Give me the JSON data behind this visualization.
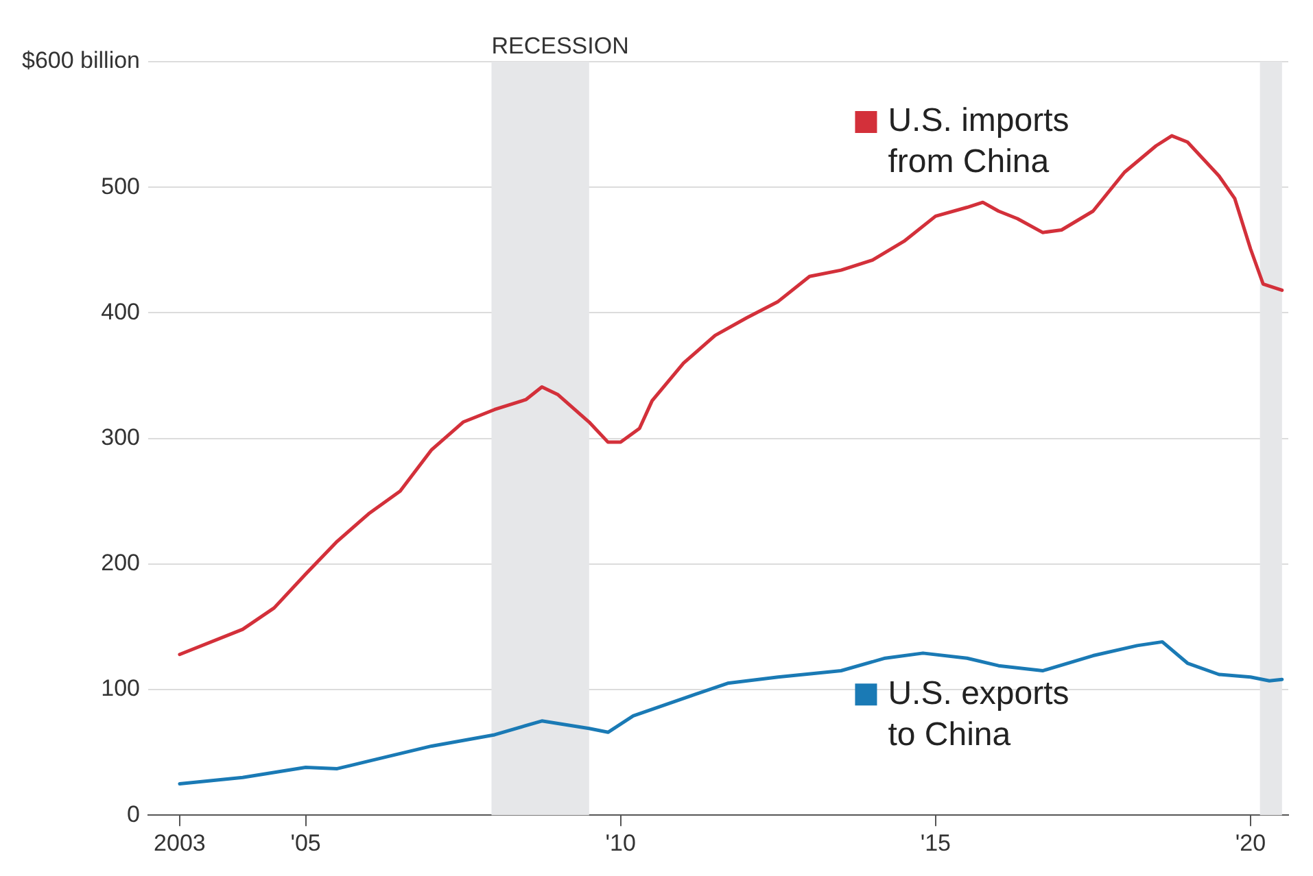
{
  "chart_data": {
    "type": "line",
    "xlim": [
      2002.5,
      2020.6
    ],
    "xticks": [
      {
        "value": 2003,
        "label": "2003"
      },
      {
        "value": 2005,
        "label": "'05"
      },
      {
        "value": 2010,
        "label": "'10"
      },
      {
        "value": 2015,
        "label": "'15"
      },
      {
        "value": 2020,
        "label": "'20"
      }
    ],
    "ylim": [
      0,
      600
    ],
    "yticks": [
      0,
      100,
      200,
      300,
      400,
      500,
      {
        "value": 600,
        "label": "$600 billion"
      }
    ],
    "grid": "y",
    "legend": "right",
    "line_style": "solid",
    "marker": "none",
    "bands": [
      {
        "axis": "x",
        "from": 2007.95,
        "to": 2009.5,
        "label": "RECESSION",
        "color": "#e6e7e9"
      },
      {
        "axis": "x",
        "from": 2020.15,
        "to": 2020.5,
        "color": "#e6e7e9"
      }
    ],
    "series": [
      {
        "name": "U.S. imports from China",
        "color": "#d3303a",
        "x": [
          2003,
          2004,
          2004.5,
          2005,
          2005.5,
          2006,
          2006.5,
          2007,
          2007.5,
          2008,
          2008.5,
          2008.75,
          2009,
          2009.5,
          2009.8,
          2010,
          2010.3,
          2010.5,
          2011,
          2011.5,
          2012,
          2012.5,
          2013,
          2013.5,
          2014,
          2014.5,
          2015,
          2015.5,
          2015.75,
          2016,
          2016.3,
          2016.7,
          2017,
          2017.5,
          2018,
          2018.5,
          2018.75,
          2019,
          2019.5,
          2019.75,
          2020,
          2020.2,
          2020.5
        ],
        "values": [
          128,
          148,
          165,
          192,
          218,
          240,
          258,
          291,
          313,
          323,
          331,
          341,
          335,
          313,
          297,
          297,
          308,
          330,
          360,
          382,
          396,
          409,
          429,
          434,
          442,
          457,
          477,
          484,
          488,
          481,
          475,
          464,
          466,
          481,
          512,
          533,
          541,
          536,
          509,
          491,
          451,
          423,
          418
        ]
      },
      {
        "name": "U.S. exports to China",
        "color": "#1a7ab5",
        "x": [
          2003,
          2004,
          2005,
          2005.5,
          2006,
          2007,
          2008,
          2008.75,
          2009.5,
          2009.8,
          2010.2,
          2011,
          2011.7,
          2012.5,
          2013.5,
          2014.2,
          2014.8,
          2015.5,
          2016,
          2016.7,
          2017.5,
          2018.2,
          2018.6,
          2019,
          2019.5,
          2020,
          2020.3,
          2020.5
        ],
        "values": [
          25,
          30,
          38,
          37,
          43,
          55,
          64,
          75,
          69,
          66,
          79,
          93,
          105,
          110,
          115,
          125,
          129,
          125,
          119,
          115,
          127,
          135,
          138,
          121,
          112,
          110,
          107,
          108
        ]
      }
    ]
  }
}
